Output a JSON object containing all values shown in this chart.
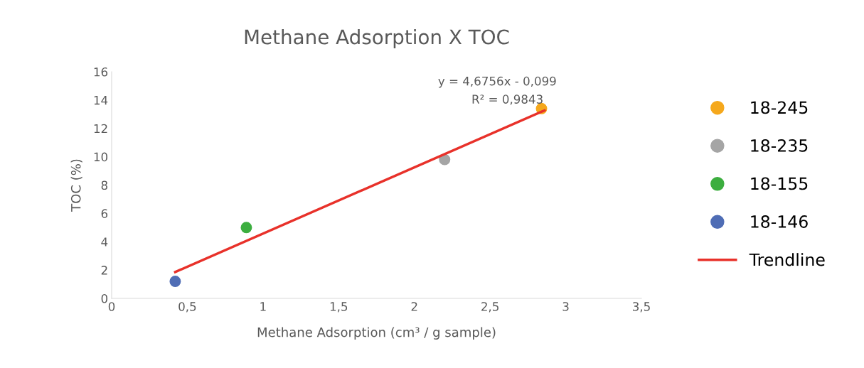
{
  "chart_data": {
    "type": "scatter",
    "title": "Methane Adsorption X TOC",
    "xlabel": "Methane Adsorption (cm³ / g sample)",
    "ylabel": "TOC (%)",
    "series": [
      {
        "name": "18-245",
        "color": "#f5a81c",
        "x": [
          2.84
        ],
        "values": [
          13.4
        ]
      },
      {
        "name": "18-235",
        "color": "#a5a5a5",
        "x": [
          2.2
        ],
        "values": [
          9.8
        ]
      },
      {
        "name": "18-155",
        "color": "#3cae3f",
        "x": [
          0.89
        ],
        "values": [
          5.0
        ]
      },
      {
        "name": "18-146",
        "color": "#4f6db5",
        "x": [
          0.42
        ],
        "values": [
          1.2
        ]
      },
      {
        "name": "Trendline",
        "type": "line",
        "marker": "none",
        "color": "#e8312a",
        "x": [
          0.42,
          2.86
        ],
        "values": [
          1.86,
          13.27
        ]
      }
    ],
    "annotations": [
      "y = 4,6756x - 0,099",
      "R² = 0,9843"
    ],
    "xlim": [
      0,
      3.5
    ],
    "xticks": [
      0,
      {
        "value": 0.5,
        "label": "0,5"
      },
      1,
      {
        "value": 1.5,
        "label": "1,5"
      },
      2,
      {
        "value": 2.5,
        "label": "2,5"
      },
      3,
      {
        "value": 3.5,
        "label": "3,5"
      }
    ],
    "ylim": [
      0,
      16
    ],
    "yticks": [
      0,
      2,
      4,
      6,
      8,
      10,
      12,
      14,
      16
    ],
    "grid": false,
    "legend": "right",
    "marker": "circle"
  }
}
